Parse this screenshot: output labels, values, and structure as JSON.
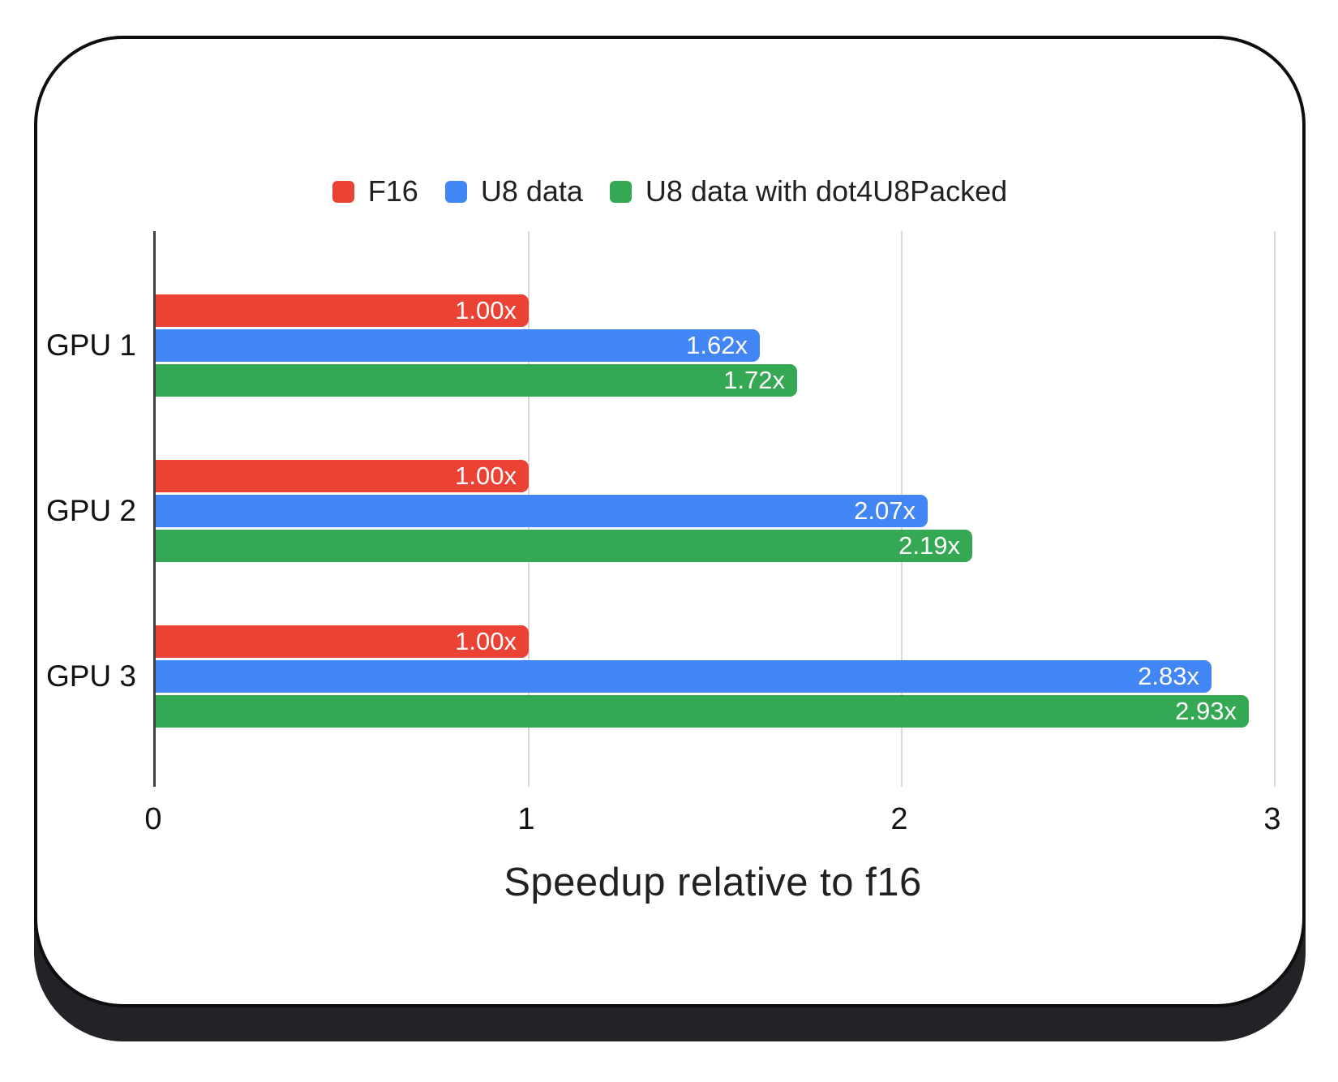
{
  "chart_data": {
    "type": "bar",
    "orientation": "horizontal",
    "title": "",
    "xlabel": "Speedup relative to f16",
    "ylabel": "",
    "categories": [
      "GPU 1",
      "GPU 2",
      "GPU 3"
    ],
    "series": [
      {
        "name": "F16",
        "color": "#ea4335",
        "values": [
          1.0,
          1.0,
          1.0
        ],
        "labels": [
          "1.00x",
          "1.00x",
          "1.00x"
        ]
      },
      {
        "name": "U8 data",
        "color": "#4285f4",
        "values": [
          1.62,
          2.07,
          2.83
        ],
        "labels": [
          "1.62x",
          "2.07x",
          "2.83x"
        ]
      },
      {
        "name": "U8 data with dot4U8Packed",
        "color": "#34a853",
        "values": [
          1.72,
          2.19,
          2.93
        ],
        "labels": [
          "1.72x",
          "2.19x",
          "2.93x"
        ]
      }
    ],
    "xlim": [
      0,
      3
    ],
    "x_ticks": [
      "0",
      "1",
      "2",
      "3"
    ],
    "grid": true,
    "legend_position": "top",
    "value_label_color": "#ffffff",
    "gridline_color": "#d9d9d9",
    "axis_line_color": "#3c4043",
    "text_color": "#202124"
  },
  "frame": {
    "card_background": "#ffffff",
    "card_border_color": "#0d0e10",
    "card_shadow_color": "#212327"
  }
}
